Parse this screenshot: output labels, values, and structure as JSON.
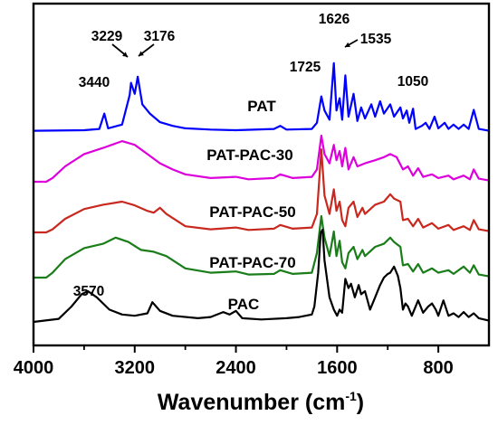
{
  "chart_data": {
    "type": "line",
    "title": "",
    "xlabel": "Wavenumber (cm",
    "xlabel_sup": "-1",
    "xlabel_end": ")",
    "ylabel": "",
    "xlim": [
      4000,
      400
    ],
    "x_reversed": true,
    "y_ticks_shown": false,
    "grid": false,
    "x_ticks": [
      4000,
      3200,
      2400,
      1600,
      800
    ],
    "x_tick_labels": [
      "4000",
      "3200",
      "2400",
      "1600",
      "800"
    ],
    "series": [
      {
        "name": "PAT",
        "color": "#0000ff",
        "offset": 4,
        "points": [
          [
            4000,
            0.02
          ],
          [
            3600,
            0.03
          ],
          [
            3480,
            0.05
          ],
          [
            3440,
            0.3
          ],
          [
            3410,
            0.06
          ],
          [
            3300,
            0.12
          ],
          [
            3240,
            0.6
          ],
          [
            3229,
            0.8
          ],
          [
            3200,
            0.62
          ],
          [
            3176,
            0.9
          ],
          [
            3140,
            0.45
          ],
          [
            3080,
            0.3
          ],
          [
            3000,
            0.16
          ],
          [
            2900,
            0.1
          ],
          [
            2800,
            0.06
          ],
          [
            2600,
            0.04
          ],
          [
            2400,
            0.03
          ],
          [
            2100,
            0.05
          ],
          [
            2050,
            0.1
          ],
          [
            2000,
            0.04
          ],
          [
            1800,
            0.05
          ],
          [
            1760,
            0.15
          ],
          [
            1725,
            0.58
          ],
          [
            1700,
            0.35
          ],
          [
            1660,
            0.2
          ],
          [
            1626,
            1.12
          ],
          [
            1605,
            0.35
          ],
          [
            1580,
            0.55
          ],
          [
            1560,
            0.2
          ],
          [
            1535,
            0.92
          ],
          [
            1510,
            0.25
          ],
          [
            1470,
            0.62
          ],
          [
            1440,
            0.18
          ],
          [
            1410,
            0.4
          ],
          [
            1380,
            0.22
          ],
          [
            1330,
            0.45
          ],
          [
            1300,
            0.25
          ],
          [
            1260,
            0.5
          ],
          [
            1230,
            0.3
          ],
          [
            1180,
            0.45
          ],
          [
            1150,
            0.25
          ],
          [
            1100,
            0.4
          ],
          [
            1080,
            0.22
          ],
          [
            1050,
            0.35
          ],
          [
            1030,
            0.15
          ],
          [
            1000,
            0.38
          ],
          [
            980,
            0.05
          ],
          [
            930,
            0.1
          ],
          [
            900,
            0.15
          ],
          [
            870,
            0.05
          ],
          [
            830,
            0.25
          ],
          [
            800,
            0.06
          ],
          [
            750,
            0.15
          ],
          [
            720,
            0.05
          ],
          [
            680,
            0.12
          ],
          [
            640,
            0.05
          ],
          [
            600,
            0.12
          ],
          [
            560,
            0.05
          ],
          [
            520,
            0.36
          ],
          [
            480,
            0.05
          ],
          [
            400,
            0.02
          ]
        ]
      },
      {
        "name": "PAT-PAC-30",
        "color": "#dd00dd",
        "offset": 3,
        "points": [
          [
            4000,
            0.0
          ],
          [
            3900,
            0.0
          ],
          [
            3850,
            0.06
          ],
          [
            3750,
            0.25
          ],
          [
            3600,
            0.45
          ],
          [
            3450,
            0.55
          ],
          [
            3300,
            0.66
          ],
          [
            3200,
            0.6
          ],
          [
            3100,
            0.45
          ],
          [
            3000,
            0.3
          ],
          [
            2900,
            0.2
          ],
          [
            2800,
            0.12
          ],
          [
            2600,
            0.06
          ],
          [
            2400,
            0.08
          ],
          [
            2300,
            0.04
          ],
          [
            2100,
            0.06
          ],
          [
            2050,
            0.12
          ],
          [
            1950,
            0.06
          ],
          [
            1800,
            0.08
          ],
          [
            1760,
            0.2
          ],
          [
            1725,
            0.75
          ],
          [
            1700,
            0.45
          ],
          [
            1660,
            0.3
          ],
          [
            1626,
            0.6
          ],
          [
            1605,
            0.35
          ],
          [
            1580,
            0.5
          ],
          [
            1560,
            0.25
          ],
          [
            1535,
            0.55
          ],
          [
            1510,
            0.2
          ],
          [
            1470,
            0.4
          ],
          [
            1440,
            0.25
          ],
          [
            1380,
            0.3
          ],
          [
            1300,
            0.35
          ],
          [
            1230,
            0.4
          ],
          [
            1180,
            0.45
          ],
          [
            1130,
            0.4
          ],
          [
            1080,
            0.2
          ],
          [
            1040,
            0.25
          ],
          [
            1000,
            0.1
          ],
          [
            960,
            0.22
          ],
          [
            920,
            0.08
          ],
          [
            850,
            0.12
          ],
          [
            800,
            0.06
          ],
          [
            720,
            0.1
          ],
          [
            680,
            0.04
          ],
          [
            600,
            0.1
          ],
          [
            550,
            0.04
          ],
          [
            520,
            0.2
          ],
          [
            480,
            0.05
          ],
          [
            400,
            0.02
          ]
        ]
      },
      {
        "name": "PAT-PAC-50",
        "color": "#c8281e",
        "offset": 2,
        "points": [
          [
            4000,
            0.0
          ],
          [
            3900,
            0.0
          ],
          [
            3850,
            0.05
          ],
          [
            3750,
            0.22
          ],
          [
            3600,
            0.38
          ],
          [
            3450,
            0.45
          ],
          [
            3300,
            0.5
          ],
          [
            3200,
            0.44
          ],
          [
            3100,
            0.35
          ],
          [
            3050,
            0.32
          ],
          [
            3000,
            0.4
          ],
          [
            2950,
            0.3
          ],
          [
            2800,
            0.1
          ],
          [
            2600,
            0.05
          ],
          [
            2400,
            0.08
          ],
          [
            2300,
            0.04
          ],
          [
            2100,
            0.06
          ],
          [
            2050,
            0.12
          ],
          [
            1950,
            0.06
          ],
          [
            1800,
            0.08
          ],
          [
            1760,
            0.3
          ],
          [
            1725,
            1.35
          ],
          [
            1700,
            0.6
          ],
          [
            1660,
            0.3
          ],
          [
            1626,
            0.7
          ],
          [
            1605,
            0.35
          ],
          [
            1580,
            0.5
          ],
          [
            1560,
            0.2
          ],
          [
            1535,
            0.1
          ],
          [
            1510,
            0.4
          ],
          [
            1470,
            0.5
          ],
          [
            1440,
            0.25
          ],
          [
            1400,
            0.4
          ],
          [
            1380,
            0.3
          ],
          [
            1300,
            0.45
          ],
          [
            1230,
            0.5
          ],
          [
            1180,
            0.62
          ],
          [
            1150,
            0.55
          ],
          [
            1100,
            0.5
          ],
          [
            1080,
            0.2
          ],
          [
            1040,
            0.22
          ],
          [
            1000,
            0.1
          ],
          [
            960,
            0.22
          ],
          [
            920,
            0.08
          ],
          [
            850,
            0.15
          ],
          [
            800,
            0.06
          ],
          [
            720,
            0.12
          ],
          [
            680,
            0.04
          ],
          [
            600,
            0.1
          ],
          [
            550,
            0.04
          ],
          [
            520,
            0.2
          ],
          [
            480,
            0.05
          ],
          [
            400,
            0.02
          ]
        ]
      },
      {
        "name": "PAT-PAC-70",
        "color": "#1a7d1a",
        "offset": 1,
        "points": [
          [
            4000,
            0.0
          ],
          [
            3900,
            0.0
          ],
          [
            3850,
            0.08
          ],
          [
            3750,
            0.3
          ],
          [
            3600,
            0.48
          ],
          [
            3450,
            0.55
          ],
          [
            3350,
            0.65
          ],
          [
            3250,
            0.58
          ],
          [
            3150,
            0.45
          ],
          [
            3050,
            0.42
          ],
          [
            2950,
            0.35
          ],
          [
            2800,
            0.15
          ],
          [
            2600,
            0.08
          ],
          [
            2400,
            0.1
          ],
          [
            2300,
            0.05
          ],
          [
            2100,
            0.06
          ],
          [
            2050,
            0.12
          ],
          [
            1950,
            0.06
          ],
          [
            1800,
            0.08
          ],
          [
            1760,
            0.4
          ],
          [
            1725,
            1.0
          ],
          [
            1700,
            0.65
          ],
          [
            1660,
            0.35
          ],
          [
            1626,
            0.75
          ],
          [
            1605,
            0.35
          ],
          [
            1580,
            0.6
          ],
          [
            1560,
            0.25
          ],
          [
            1535,
            0.15
          ],
          [
            1510,
            0.4
          ],
          [
            1470,
            0.5
          ],
          [
            1440,
            0.3
          ],
          [
            1400,
            0.45
          ],
          [
            1380,
            0.35
          ],
          [
            1300,
            0.5
          ],
          [
            1230,
            0.55
          ],
          [
            1180,
            0.65
          ],
          [
            1150,
            0.58
          ],
          [
            1100,
            0.5
          ],
          [
            1080,
            0.2
          ],
          [
            1040,
            0.22
          ],
          [
            1000,
            0.1
          ],
          [
            960,
            0.22
          ],
          [
            920,
            0.08
          ],
          [
            850,
            0.15
          ],
          [
            800,
            0.08
          ],
          [
            720,
            0.12
          ],
          [
            680,
            0.06
          ],
          [
            600,
            0.18
          ],
          [
            550,
            0.08
          ],
          [
            520,
            0.2
          ],
          [
            480,
            0.05
          ],
          [
            400,
            0.02
          ]
        ]
      },
      {
        "name": "PAC",
        "color": "#000000",
        "offset": 0,
        "points": [
          [
            4000,
            0.0
          ],
          [
            3800,
            0.05
          ],
          [
            3700,
            0.25
          ],
          [
            3620,
            0.45
          ],
          [
            3570,
            0.5
          ],
          [
            3500,
            0.4
          ],
          [
            3400,
            0.2
          ],
          [
            3300,
            0.12
          ],
          [
            3200,
            0.1
          ],
          [
            3100,
            0.14
          ],
          [
            3060,
            0.32
          ],
          [
            3000,
            0.18
          ],
          [
            2900,
            0.1
          ],
          [
            2700,
            0.06
          ],
          [
            2600,
            0.08
          ],
          [
            2500,
            0.16
          ],
          [
            2450,
            0.12
          ],
          [
            2400,
            0.18
          ],
          [
            2350,
            0.06
          ],
          [
            2200,
            0.04
          ],
          [
            2000,
            0.06
          ],
          [
            1900,
            0.08
          ],
          [
            1800,
            0.12
          ],
          [
            1780,
            0.25
          ],
          [
            1750,
            0.8
          ],
          [
            1730,
            1.45
          ],
          [
            1715,
            1.5
          ],
          [
            1700,
            1.0
          ],
          [
            1660,
            0.4
          ],
          [
            1626,
            0.2
          ],
          [
            1600,
            0.1
          ],
          [
            1580,
            0.2
          ],
          [
            1560,
            0.15
          ],
          [
            1535,
            0.7
          ],
          [
            1510,
            0.55
          ],
          [
            1490,
            0.62
          ],
          [
            1460,
            0.4
          ],
          [
            1430,
            0.6
          ],
          [
            1410,
            0.45
          ],
          [
            1380,
            0.5
          ],
          [
            1340,
            0.2
          ],
          [
            1300,
            0.4
          ],
          [
            1260,
            0.6
          ],
          [
            1230,
            0.72
          ],
          [
            1200,
            0.78
          ],
          [
            1180,
            0.8
          ],
          [
            1150,
            0.9
          ],
          [
            1120,
            0.75
          ],
          [
            1100,
            0.55
          ],
          [
            1080,
            0.2
          ],
          [
            1060,
            0.3
          ],
          [
            1040,
            0.25
          ],
          [
            1010,
            0.1
          ],
          [
            960,
            0.35
          ],
          [
            920,
            0.15
          ],
          [
            880,
            0.25
          ],
          [
            850,
            0.3
          ],
          [
            820,
            0.2
          ],
          [
            800,
            0.1
          ],
          [
            760,
            0.35
          ],
          [
            720,
            0.1
          ],
          [
            680,
            0.14
          ],
          [
            640,
            0.08
          ],
          [
            600,
            0.16
          ],
          [
            560,
            0.08
          ],
          [
            520,
            0.14
          ],
          [
            480,
            0.06
          ],
          [
            400,
            0.02
          ]
        ]
      }
    ],
    "annotations": [
      {
        "text": "3440",
        "x": 3440,
        "series": "PAT"
      },
      {
        "text": "3229",
        "x": 3229,
        "series": "PAT"
      },
      {
        "text": "3176",
        "x": 3176,
        "series": "PAT"
      },
      {
        "text": "1725",
        "x": 1725,
        "series": "PAT"
      },
      {
        "text": "1626",
        "x": 1626,
        "series": "PAT"
      },
      {
        "text": "1535",
        "x": 1535,
        "series": "PAT"
      },
      {
        "text": "1050",
        "x": 1050,
        "series": "PAT"
      },
      {
        "text": "3570",
        "x": 3570,
        "series": "PAC"
      }
    ]
  }
}
